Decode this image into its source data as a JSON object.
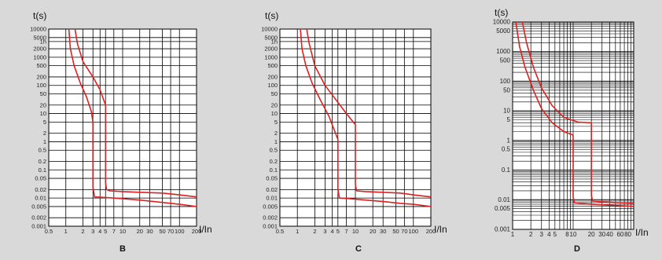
{
  "chart_data": [
    {
      "type": "line",
      "caption": "B",
      "ylabel": "t(s)",
      "xlabel": "I/In",
      "xscale": "log",
      "yscale": "log",
      "xlim": [
        0.5,
        200
      ],
      "ylim": [
        0.001,
        10000
      ],
      "grid": true,
      "y_ticks": [
        "10000",
        "5000",
        "1h",
        "2000",
        "1000",
        "500",
        "200",
        "100",
        "50",
        "20",
        "10",
        "5",
        "2",
        "1",
        "0.5",
        "0.2",
        "0.1",
        "0.05",
        "0.02",
        "0.01",
        "0.005",
        "0.002",
        "0.001"
      ],
      "x_ticks": [
        "0.5",
        "1",
        "2",
        "3",
        "4",
        "5",
        "7",
        "10",
        "20",
        "30",
        "50",
        "70",
        "100",
        "200"
      ],
      "series": [
        {
          "color": "#e02020",
          "x": [
            1.13,
            1.2,
            1.4,
            1.8,
            2.3,
            2.8,
            3.0,
            3.0,
            3.2,
            5,
            10,
            20,
            50,
            100,
            200
          ],
          "y": [
            10000,
            2000,
            500,
            120,
            40,
            12,
            5,
            0.025,
            0.011,
            0.0105,
            0.0095,
            0.0085,
            0.007,
            0.006,
            0.005
          ]
        },
        {
          "color": "#e02020",
          "x": [
            1.45,
            1.6,
            2,
            3,
            4,
            5,
            5.0,
            5.2,
            6,
            10,
            20,
            50,
            100,
            200
          ],
          "y": [
            10000,
            3000,
            700,
            200,
            70,
            20,
            0.035,
            0.02,
            0.018,
            0.017,
            0.016,
            0.015,
            0.013,
            0.011
          ]
        }
      ]
    },
    {
      "type": "line",
      "caption": "C",
      "ylabel": "t(s)",
      "xlabel": "I/In",
      "xscale": "log",
      "yscale": "log",
      "xlim": [
        0.5,
        200
      ],
      "ylim": [
        0.001,
        10000
      ],
      "grid": true,
      "y_ticks": [
        "10000",
        "5000",
        "1h",
        "2000",
        "1000",
        "500",
        "200",
        "100",
        "50",
        "20",
        "10",
        "5",
        "2",
        "1",
        "0.5",
        "0.2",
        "0.1",
        "0.05",
        "0.02",
        "0.01",
        "0.005",
        "0.002",
        "0.001"
      ],
      "x_ticks": [
        "0.5",
        "1",
        "2",
        "3",
        "4",
        "5",
        "7",
        "10",
        "20",
        "30",
        "50",
        "70",
        "100",
        "200"
      ],
      "series": [
        {
          "color": "#e02020",
          "x": [
            1.13,
            1.2,
            1.4,
            1.8,
            2.5,
            3.5,
            5,
            5.0,
            5.3,
            8,
            15,
            30,
            60,
            100,
            200
          ],
          "y": [
            10000,
            2000,
            500,
            120,
            30,
            8,
            1.2,
            0.02,
            0.01,
            0.0095,
            0.0085,
            0.0075,
            0.0065,
            0.006,
            0.005
          ]
        },
        {
          "color": "#e02020",
          "x": [
            1.45,
            1.6,
            2,
            3,
            5,
            7,
            10,
            10.0,
            10.5,
            15,
            30,
            60,
            100,
            200
          ],
          "y": [
            10000,
            3000,
            500,
            100,
            25,
            10,
            4,
            0.03,
            0.018,
            0.017,
            0.016,
            0.015,
            0.013,
            0.011
          ]
        }
      ]
    },
    {
      "type": "line",
      "caption": "D",
      "ylabel": "t(s)",
      "xlabel": "I/In",
      "xscale": "log",
      "yscale": "log",
      "xlim": [
        1,
        100
      ],
      "ylim": [
        0.001,
        10000
      ],
      "grid": true,
      "y_ticks": [
        "10000",
        "5000",
        "1000",
        "500",
        "100",
        "50",
        "10",
        "5",
        "1",
        "0.5",
        "0.1",
        "0.01",
        "0.005",
        "0.001"
      ],
      "x_ticks": [
        "1",
        "2",
        "3",
        "4",
        "5",
        "8",
        "10",
        "20",
        "30",
        "40",
        "60",
        "80"
      ],
      "series": [
        {
          "color": "#e02020",
          "x": [
            1.13,
            1.3,
            1.6,
            2.2,
            3,
            4.5,
            7,
            9.5,
            10,
            10.0,
            10.5,
            13,
            20,
            40,
            100
          ],
          "y": [
            10000,
            1500,
            300,
            50,
            12,
            4,
            2,
            1.6,
            1.5,
            0.012,
            0.008,
            0.0075,
            0.007,
            0.0065,
            0.006
          ]
        },
        {
          "color": "#e02020",
          "x": [
            1.45,
            1.7,
            2.2,
            3,
            4.5,
            7,
            12,
            18,
            20,
            20.0,
            21,
            30,
            50,
            100
          ],
          "y": [
            10000,
            2000,
            300,
            60,
            15,
            6,
            4.2,
            4,
            4,
            0.014,
            0.009,
            0.0085,
            0.008,
            0.0075
          ]
        }
      ]
    }
  ]
}
